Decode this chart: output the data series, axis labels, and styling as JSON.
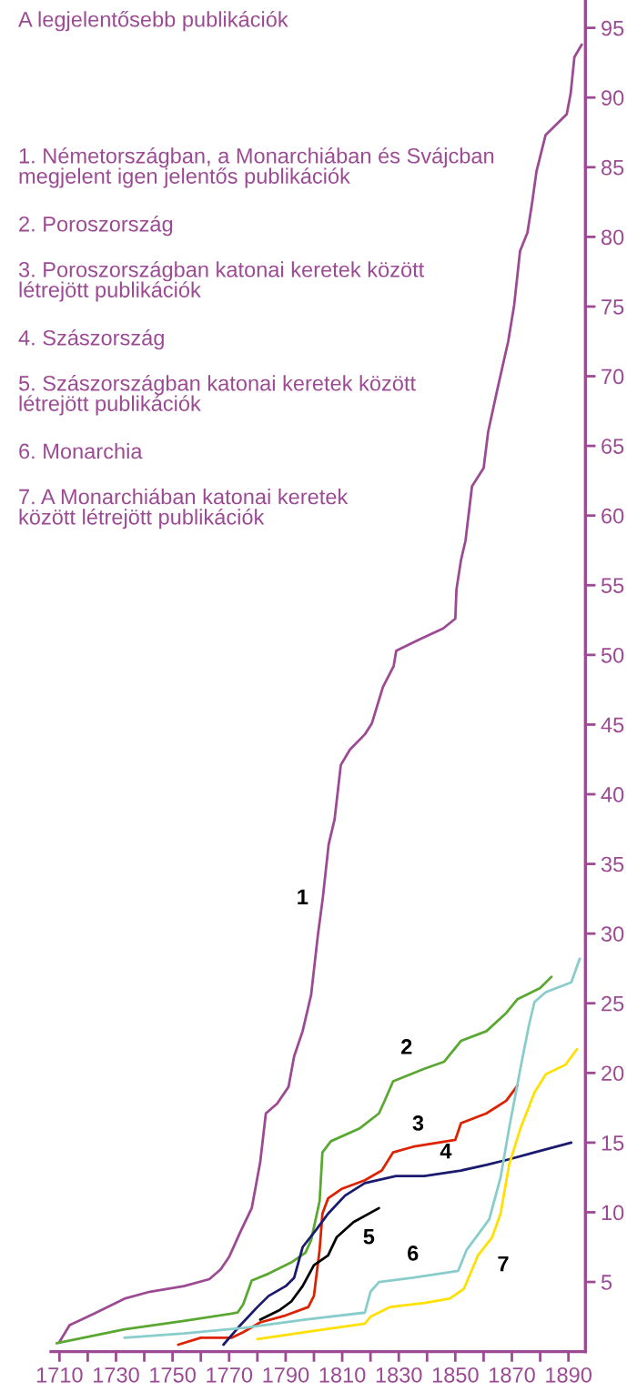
{
  "chart_data": {
    "type": "line",
    "title": "A legjelentősebb publikációk",
    "xlim": [
      1707,
      1896
    ],
    "ylim": [
      0,
      97
    ],
    "xticks": [
      1710,
      {
        "value": 1720,
        "label": null
      },
      1730,
      {
        "value": 1740,
        "label": null
      },
      1750,
      {
        "value": 1760,
        "label": null
      },
      1770,
      {
        "value": 1780,
        "label": null
      },
      1790,
      {
        "value": 1800,
        "label": null
      },
      1810,
      {
        "value": 1820,
        "label": null
      },
      1830,
      {
        "value": 1840,
        "label": null
      },
      1850,
      {
        "value": 1860,
        "label": null
      },
      1870,
      {
        "value": 1880,
        "label": null
      },
      1890
    ],
    "yticks": [
      5,
      10,
      15,
      20,
      25,
      30,
      35,
      40,
      45,
      50,
      55,
      60,
      65,
      70,
      75,
      80,
      85,
      90,
      95
    ],
    "grid": false,
    "legend": false,
    "marker": "none",
    "line_style": "solid",
    "series": [
      {
        "color": "#9c4a94",
        "x": [
          1710,
          1713.6,
          1722,
          1733,
          1742,
          1754,
          1763,
          1767,
          1770,
          1774,
          1778,
          1781,
          1783,
          1787,
          1791,
          1793,
          1796,
          1799,
          1801.4,
          1803.1,
          1805.2,
          1807.3,
          1809.5,
          1812.7,
          1818,
          1820.5,
          1824.4,
          1828.2,
          1829.1,
          1837.2,
          1845.7,
          1850,
          1850.4,
          1852,
          1853.6,
          1855.9,
          1860,
          1861.6,
          1864.8,
          1868.7,
          1870.8,
          1872.9,
          1875.5,
          1877.2,
          1878.7,
          1881.9,
          1889.4,
          1890.8,
          1892.1,
          1894.7
        ],
        "values": [
          0.7,
          1.9,
          2.7,
          3.8,
          4.3,
          4.7,
          5.2,
          5.9,
          6.8,
          8.6,
          10.3,
          13.6,
          17.1,
          17.8,
          19.0,
          21.2,
          23.0,
          25.6,
          29.9,
          32.5,
          36.4,
          38.2,
          42.1,
          43.2,
          44.3,
          45.1,
          47.7,
          49.2,
          50.3,
          51.1,
          51.9,
          52.6,
          54.7,
          56.8,
          58.2,
          62.1,
          63.4,
          66.0,
          69.0,
          72.5,
          75.1,
          79.0,
          80.3,
          82.5,
          84.7,
          87.3,
          88.8,
          90.3,
          92.9,
          93.8
        ]
      },
      {
        "color": "#5aa832",
        "x": [
          1709,
          1733,
          1754,
          1773,
          1775,
          1778,
          1784,
          1792,
          1797,
          1799,
          1802,
          1803,
          1806,
          1816,
          1823,
          1825,
          1828,
          1839,
          1846,
          1852,
          1861,
          1868,
          1872,
          1880,
          1884
        ],
        "values": [
          0.6,
          1.6,
          2.2,
          2.8,
          3.4,
          5.1,
          5.6,
          6.4,
          7.1,
          8.0,
          10.8,
          14.3,
          15.1,
          16.0,
          17.1,
          18.0,
          19.4,
          20.3,
          20.8,
          22.3,
          23.0,
          24.3,
          25.3,
          26.1,
          26.9
        ]
      },
      {
        "color": "#dd2200",
        "x": [
          1752,
          1760,
          1771,
          1775,
          1781,
          1790,
          1798,
          1800,
          1802,
          1803,
          1805,
          1810,
          1818,
          1824,
          1828,
          1835,
          1844,
          1850,
          1852,
          1861,
          1868,
          1872
        ],
        "values": [
          0.5,
          1.0,
          1.0,
          1.4,
          2.1,
          2.6,
          3.2,
          4.0,
          7.3,
          9.9,
          11.0,
          11.7,
          12.3,
          13.0,
          14.3,
          14.7,
          15.0,
          15.2,
          16.4,
          17.1,
          18.0,
          19.1
        ]
      },
      {
        "color": "#1a1a6e",
        "x": [
          1768,
          1774,
          1780,
          1784,
          1790,
          1793,
          1796,
          1801,
          1805,
          1811,
          1818,
          1829,
          1839,
          1852,
          1861,
          1869,
          1878,
          1891
        ],
        "values": [
          0.5,
          1.9,
          3.2,
          4.0,
          4.7,
          5.3,
          7.5,
          8.8,
          9.9,
          11.2,
          12.1,
          12.6,
          12.6,
          13.0,
          13.4,
          13.8,
          14.3,
          15.0
        ]
      },
      {
        "color": "#000000",
        "x": [
          1781,
          1788,
          1792,
          1796,
          1800,
          1805,
          1808,
          1814,
          1823
        ],
        "values": [
          2.3,
          3.0,
          3.6,
          4.7,
          6.2,
          6.9,
          8.2,
          9.3,
          10.3
        ]
      },
      {
        "color": "#88cccc",
        "x": [
          1733,
          1754,
          1775,
          1797,
          1818,
          1820,
          1823,
          1835,
          1851,
          1854,
          1862,
          1866,
          1869,
          1873,
          1876,
          1878,
          1882,
          1891,
          1894
        ],
        "values": [
          1.0,
          1.3,
          1.7,
          2.3,
          2.8,
          4.3,
          5.0,
          5.3,
          5.8,
          7.3,
          9.5,
          12.5,
          16.0,
          20.3,
          23.4,
          25.1,
          25.8,
          26.5,
          28.2
        ]
      },
      {
        "color": "#ffe000",
        "x": [
          1780,
          1797,
          1818,
          1820,
          1827,
          1839,
          1848,
          1853,
          1858,
          1863,
          1866,
          1869,
          1873,
          1878,
          1882,
          1889,
          1893
        ],
        "values": [
          0.9,
          1.4,
          2.0,
          2.5,
          3.2,
          3.5,
          3.8,
          4.5,
          6.9,
          8.2,
          9.9,
          13.4,
          16.0,
          18.6,
          19.9,
          20.6,
          21.7
        ]
      }
    ],
    "annotations": [
      "1. Németországban, a Monarchiában és Svájcban\nmegjelent igen jelentős publikációk",
      "2. Poroszország",
      "3. Poroszországban katonai keretek között\nlétrejött publikációk",
      "4. Szászország",
      "5. Szászországban katonai keretek között\nlétrejött publikációk",
      "6. Monarchia",
      "7. A Monarchiában katonai keretek\nközött létrejött publikációk",
      {
        "text": "1",
        "x": 1803.1,
        "y": 32.5
      },
      {
        "text": "2",
        "x": 1839,
        "y": 20.3
      },
      {
        "text": "3",
        "x": 1844,
        "y": 15.0
      },
      {
        "text": "4",
        "x": 1852,
        "y": 13.0
      },
      {
        "text": "5",
        "x": 1823,
        "y": 10.3
      },
      {
        "text": "6",
        "x": 1835,
        "y": 5.3
      },
      {
        "text": "7",
        "x": 1858,
        "y": 6.9
      }
    ]
  }
}
